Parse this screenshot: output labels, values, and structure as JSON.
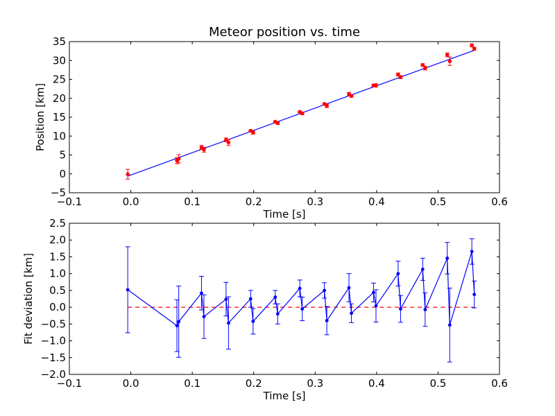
{
  "chart_data": [
    {
      "type": "scatter",
      "title": "Meteor position vs. time",
      "xlabel": "Time [s]",
      "ylabel": "Position [km]",
      "xlim": [
        -0.1,
        0.6
      ],
      "ylim": [
        -5,
        35
      ],
      "xticks": [
        -0.1,
        0.0,
        0.1,
        0.2,
        0.3,
        0.4,
        0.5,
        0.6
      ],
      "yticks": [
        -5,
        0,
        5,
        10,
        15,
        20,
        25,
        30,
        35
      ],
      "xtick_labels": [
        "−0.1",
        "0.0",
        "0.1",
        "0.2",
        "0.3",
        "0.4",
        "0.5",
        "0.6"
      ],
      "ytick_labels": [
        "−5",
        "0",
        "5",
        "10",
        "15",
        "20",
        "25",
        "30",
        "35"
      ],
      "colors": {
        "points": "#ff0000",
        "fit": "#0000ff"
      },
      "series": [
        {
          "kind": "errorbar-points",
          "x": [
            -0.005,
            0.075,
            0.078,
            0.115,
            0.119,
            0.155,
            0.159,
            0.195,
            0.199,
            0.235,
            0.239,
            0.275,
            0.279,
            0.315,
            0.319,
            0.355,
            0.359,
            0.395,
            0.399,
            0.435,
            0.439,
            0.475,
            0.479,
            0.515,
            0.519,
            0.555,
            0.559
          ],
          "y": [
            -0.1,
            3.5,
            4.0,
            7.0,
            6.4,
            9.0,
            8.3,
            11.4,
            10.9,
            13.8,
            13.4,
            16.4,
            16.0,
            18.5,
            18.0,
            21.1,
            20.6,
            23.4,
            23.4,
            26.3,
            25.6,
            28.8,
            28.0,
            31.5,
            29.8,
            34.0,
            33.1
          ],
          "err": [
            1.3,
            0.8,
            1.1,
            0.5,
            0.65,
            0.5,
            0.8,
            0.25,
            0.4,
            0.2,
            0.3,
            0.25,
            0.35,
            0.25,
            0.45,
            0.45,
            0.3,
            0.3,
            0.45,
            0.4,
            0.4,
            0.35,
            0.5,
            0.5,
            1.1,
            0.4,
            0.4
          ]
        },
        {
          "kind": "fit-line",
          "x": [
            -0.005,
            0.559
          ],
          "y": [
            -0.6,
            32.7
          ]
        }
      ]
    },
    {
      "type": "line",
      "xlabel": "Time [s]",
      "ylabel": "Fit deviation [km]",
      "xlim": [
        -0.1,
        0.6
      ],
      "ylim": [
        -2.0,
        2.5
      ],
      "xticks": [
        -0.1,
        0.0,
        0.1,
        0.2,
        0.3,
        0.4,
        0.5,
        0.6
      ],
      "yticks": [
        -2.0,
        -1.5,
        -1.0,
        -0.5,
        0.0,
        0.5,
        1.0,
        1.5,
        2.0,
        2.5
      ],
      "xtick_labels": [
        "−0.1",
        "0.0",
        "0.1",
        "0.2",
        "0.3",
        "0.4",
        "0.5",
        "0.6"
      ],
      "ytick_labels": [
        "−2.0",
        "−1.5",
        "−1.0",
        "−0.5",
        "0.0",
        "0.5",
        "1.0",
        "1.5",
        "2.0",
        "2.5"
      ],
      "colors": {
        "series": "#0000ff",
        "zero_line": "#ff0000"
      },
      "reference_line": {
        "y": 0.0,
        "x": [
          -0.005,
          0.559
        ],
        "style": "dashed"
      },
      "series": [
        {
          "kind": "errorbar-line",
          "x": [
            -0.005,
            0.075,
            0.078,
            0.115,
            0.119,
            0.155,
            0.159,
            0.195,
            0.199,
            0.235,
            0.239,
            0.275,
            0.279,
            0.315,
            0.319,
            0.355,
            0.359,
            0.395,
            0.399,
            0.435,
            0.439,
            0.475,
            0.479,
            0.515,
            0.519,
            0.555,
            0.559
          ],
          "y": [
            0.52,
            -0.55,
            -0.43,
            0.42,
            -0.28,
            0.24,
            -0.47,
            0.25,
            -0.42,
            0.3,
            -0.2,
            0.56,
            -0.05,
            0.5,
            -0.4,
            0.58,
            -0.18,
            0.44,
            0.04,
            1.0,
            -0.05,
            1.13,
            -0.07,
            1.46,
            -0.53,
            1.66,
            0.38
          ],
          "err": [
            1.28,
            0.77,
            1.06,
            0.5,
            0.65,
            0.5,
            0.78,
            0.25,
            0.38,
            0.2,
            0.3,
            0.25,
            0.35,
            0.23,
            0.42,
            0.42,
            0.28,
            0.28,
            0.48,
            0.37,
            0.4,
            0.33,
            0.5,
            0.47,
            1.1,
            0.38,
            0.4
          ]
        }
      ]
    }
  ]
}
